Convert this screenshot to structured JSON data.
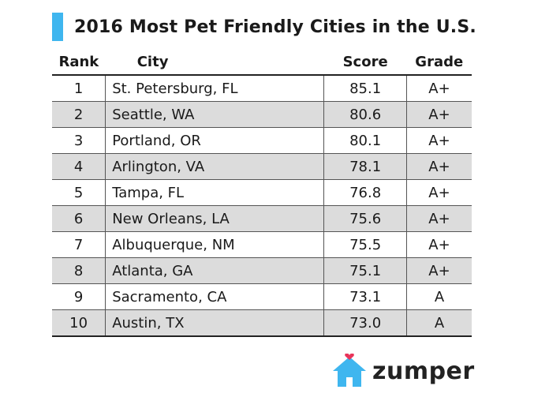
{
  "title": "2016 Most Pet Friendly Cities in the U.S.",
  "columns": {
    "rank": "Rank",
    "city": "City",
    "score": "Score",
    "grade": "Grade"
  },
  "brand": {
    "name": "zumper",
    "accent_color": "#3fb6ef",
    "heart_color": "#e8345a"
  },
  "chart_data": {
    "type": "table",
    "title": "2016 Most Pet Friendly Cities in the U.S.",
    "columns": [
      "Rank",
      "City",
      "Score",
      "Grade"
    ],
    "rows": [
      {
        "rank": "1",
        "city": "St. Petersburg, FL",
        "score": "85.1",
        "grade": "A+"
      },
      {
        "rank": "2",
        "city": "Seattle, WA",
        "score": "80.6",
        "grade": "A+"
      },
      {
        "rank": "3",
        "city": "Portland, OR",
        "score": "80.1",
        "grade": "A+"
      },
      {
        "rank": "4",
        "city": "Arlington, VA",
        "score": "78.1",
        "grade": "A+"
      },
      {
        "rank": "5",
        "city": "Tampa, FL",
        "score": "76.8",
        "grade": "A+"
      },
      {
        "rank": "6",
        "city": "New Orleans, LA",
        "score": "75.6",
        "grade": "A+"
      },
      {
        "rank": "7",
        "city": "Albuquerque, NM",
        "score": "75.5",
        "grade": "A+"
      },
      {
        "rank": "8",
        "city": "Atlanta, GA",
        "score": "75.1",
        "grade": "A+"
      },
      {
        "rank": "9",
        "city": "Sacramento, CA",
        "score": "73.1",
        "grade": "A"
      },
      {
        "rank": "10",
        "city": "Austin, TX",
        "score": "73.0",
        "grade": "A"
      }
    ]
  }
}
